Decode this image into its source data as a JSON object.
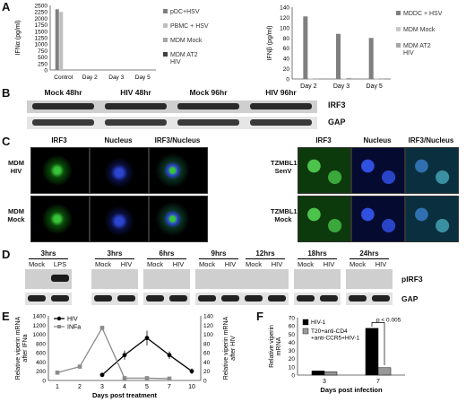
{
  "panel_labels": {
    "A": "A",
    "B": "B",
    "C": "C",
    "D": "D",
    "E": "E",
    "F": "F"
  },
  "chart_data": [
    {
      "id": "A-left",
      "type": "bar",
      "ylabel": "IFNα (pg/ml)",
      "ylim": [
        0,
        2500
      ],
      "yticks": [
        "0",
        "250",
        "500",
        "750",
        "1000",
        "1250",
        "1500",
        "1750",
        "2000",
        "2250",
        "2500"
      ],
      "categories": [
        "Control",
        "Day 2",
        "Day 3",
        "Day 5"
      ],
      "series": [
        {
          "name": "pDC+HSV",
          "color": "#7f7f7f",
          "values": [
            2350,
            0,
            0,
            0
          ]
        },
        {
          "name": "PBMC + HSV",
          "color": "#bfbfbf",
          "values": [
            2250,
            0,
            0,
            0
          ]
        },
        {
          "name": "MDM Mock",
          "color": "#a6a6a6",
          "values": [
            0,
            0,
            0,
            0
          ]
        },
        {
          "name": "MDM AT2 HIV",
          "color": "#404040",
          "values": [
            0,
            0,
            0,
            0
          ]
        }
      ],
      "legend": "right"
    },
    {
      "id": "A-right",
      "type": "bar",
      "ylabel": "IFNβ (pg/ml)",
      "ylim": [
        0,
        140
      ],
      "yticks": [
        "0",
        "20",
        "40",
        "60",
        "80",
        "100",
        "120",
        "140"
      ],
      "categories": [
        "Day 2",
        "Day 3",
        "Day 5"
      ],
      "series": [
        {
          "name": "MDDC + HSV",
          "color": "#7f7f7f",
          "values": [
            122,
            88,
            80
          ]
        },
        {
          "name": "MDM Mock",
          "color": "#c8c8c8",
          "values": [
            1,
            1,
            1
          ]
        },
        {
          "name": "MDM AT2 HIV",
          "color": "#a6a6a6",
          "values": [
            1,
            2,
            1
          ]
        }
      ],
      "legend": "right"
    },
    {
      "id": "E",
      "type": "line",
      "xlabel": "Days post treatment",
      "ylabel_left": "Relative viperin mRNA after IFNa",
      "ylabel_right": "Relative viperin mRNA after HIV",
      "categories": [
        "1",
        "2",
        "3",
        "4",
        "5",
        "7",
        "10"
      ],
      "yticks_left": [
        "0",
        "200",
        "400",
        "600",
        "800",
        "1000",
        "1200",
        "1400"
      ],
      "yticks_right": [
        "0",
        "20",
        "40",
        "60",
        "80",
        "100",
        "120",
        "140"
      ],
      "series": [
        {
          "name": "HIV",
          "axis": "right",
          "color": "#000000",
          "values": [
            null,
            null,
            12,
            55,
            92,
            55,
            20
          ]
        },
        {
          "name": "INFa",
          "axis": "left",
          "color": "#8c8c8c",
          "values": [
            170,
            300,
            1140,
            50,
            50,
            40,
            null
          ]
        }
      ],
      "legend": "top-left"
    },
    {
      "id": "F",
      "type": "bar",
      "ylabel": "Relative viperin mRNA",
      "xlabel": "Days post infection",
      "ylim": [
        0,
        70
      ],
      "yticks": [
        "0",
        "10",
        "20",
        "30",
        "40",
        "50",
        "60",
        "70"
      ],
      "categories": [
        "3",
        "7"
      ],
      "series": [
        {
          "name": "HIV-1",
          "color": "#000000",
          "values": [
            5,
            57
          ]
        },
        {
          "name": "T20+anti-CD4 +anti-CCR5+HIV-1",
          "color": "#999999",
          "values": [
            4,
            9
          ]
        }
      ],
      "annotation": "p < 0.005",
      "legend": "top-left"
    }
  ],
  "panel_B": {
    "lanes": [
      "Mock 48hr",
      "HIV 48hr",
      "Mock 96hr",
      "HIV 96hr"
    ],
    "bands": [
      "IRF3",
      "GAP"
    ]
  },
  "panel_C": {
    "left_cols": [
      "IRF3",
      "Nucleus",
      "IRF3/Nucleus"
    ],
    "left_rows": [
      "MDM HIV",
      "MDM Mock"
    ],
    "right_cols": [
      "IRF3",
      "Nucleus",
      "IRF3/Nucleus"
    ],
    "right_rows": [
      "TZMBL1 SenV",
      "TZMBL1 Mock"
    ]
  },
  "panel_D": {
    "groups": [
      {
        "time": "3hrs",
        "lanes": [
          "Mock",
          "LPS"
        ]
      },
      {
        "time": "3hrs",
        "lanes": [
          "Mock",
          "HIV"
        ]
      },
      {
        "time": "6hrs",
        "lanes": [
          "Mock",
          "HIV"
        ]
      },
      {
        "time": "9hrs",
        "lanes": [
          "Mock",
          "HIV"
        ]
      },
      {
        "time": "12hrs",
        "lanes": [
          "Mock",
          "HIV"
        ]
      },
      {
        "time": "18hrs",
        "lanes": [
          "Mock",
          "HIV"
        ]
      },
      {
        "time": "24hrs",
        "lanes": [
          "Mock",
          "HIV"
        ]
      }
    ],
    "bands": [
      "pIRF3",
      "GAP"
    ]
  }
}
